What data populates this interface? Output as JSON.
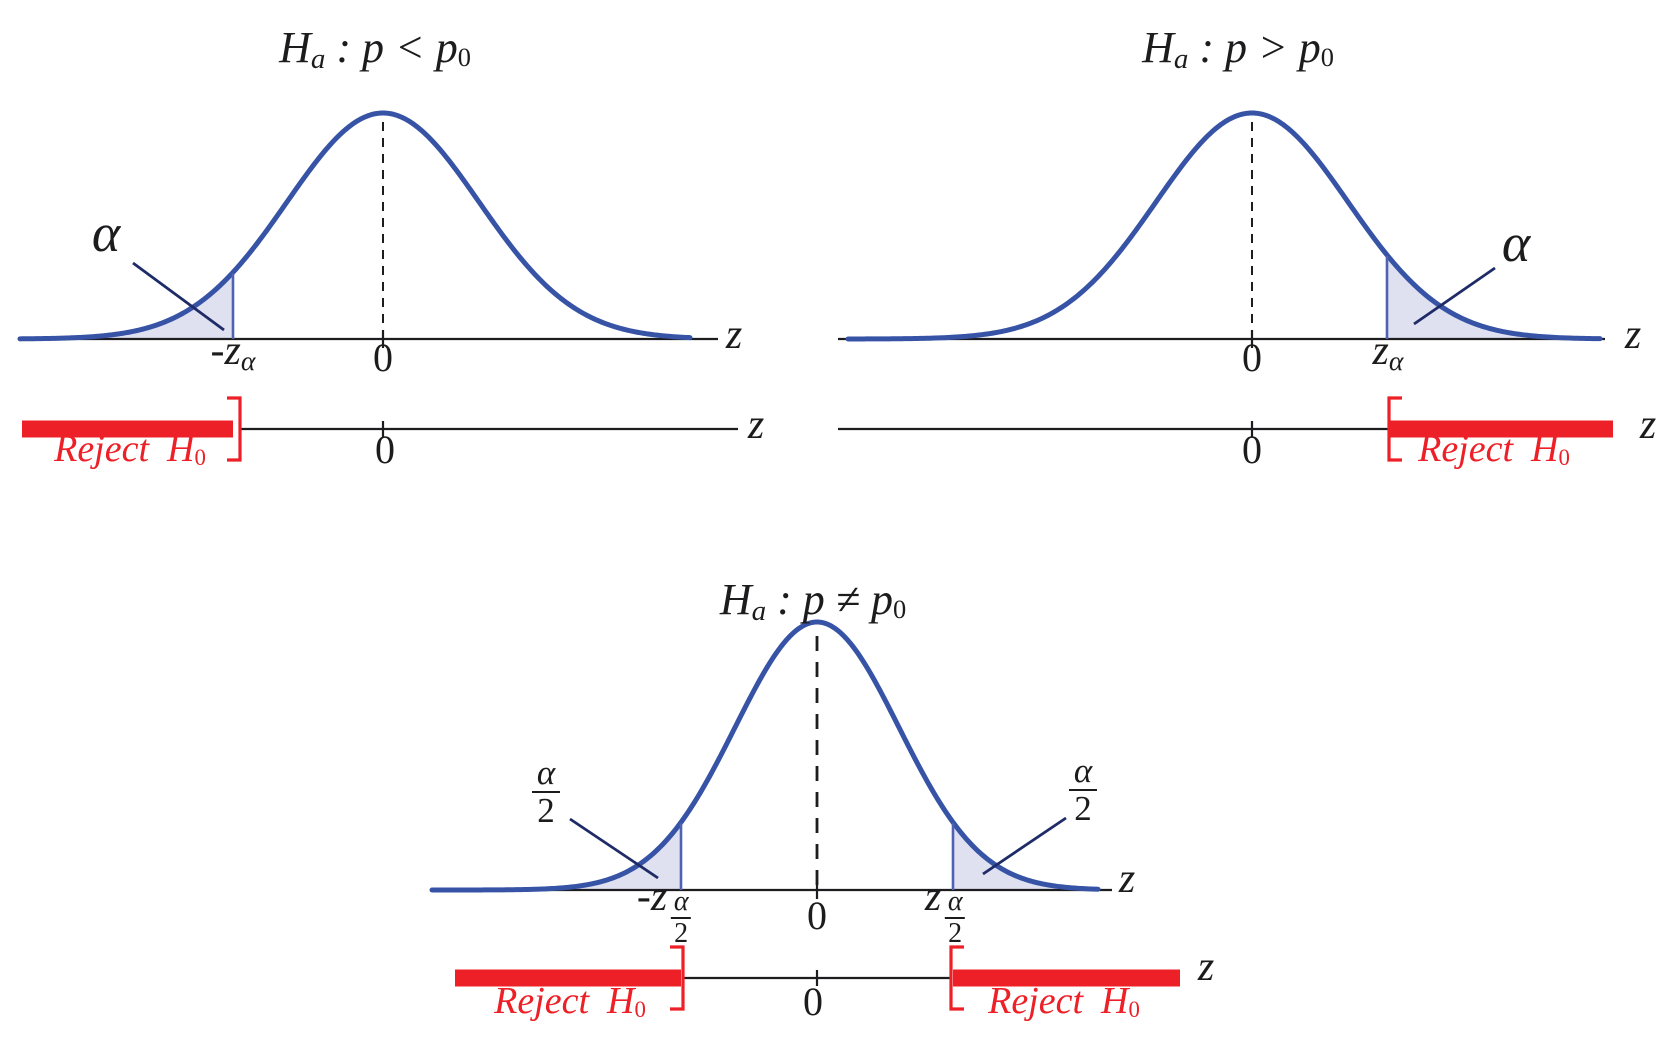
{
  "colors": {
    "curve_blue": "#3753a6",
    "crit_line_blue": "#5062b4",
    "shade_lavender": "#dfe1f1",
    "reject_red": "#ed2027",
    "pointer_navy": "#1e2b66",
    "axis_black": "#1d1d1f"
  },
  "panels": {
    "left": {
      "title": {
        "h": "H",
        "h_sub": "a",
        "rel": " : p < p",
        "p_sub": "0"
      },
      "alpha": "α",
      "crit": {
        "base": "-z",
        "sub": "α"
      },
      "zero": "0",
      "axis_z": "z",
      "reject": {
        "word": "Reject",
        "h": "H",
        "h_sub": "0"
      },
      "reject_zero": "0",
      "reject_z": "z"
    },
    "right": {
      "title": {
        "h": "H",
        "h_sub": "a",
        "rel": " : p > p",
        "p_sub": "0"
      },
      "alpha": "α",
      "crit": {
        "base": "z",
        "sub": "α"
      },
      "zero": "0",
      "axis_z": "z",
      "reject": {
        "word": "Reject",
        "h": "H",
        "h_sub": "0"
      },
      "reject_zero": "0",
      "reject_z": "z"
    },
    "two": {
      "title": {
        "h": "H",
        "h_sub": "a",
        "rel": " : p ≠ p",
        "p_sub": "0"
      },
      "alpha_left": {
        "num": "α",
        "den": "2"
      },
      "alpha_right": {
        "num": "α",
        "den": "2"
      },
      "crit_left": {
        "base": "-z",
        "num": "α",
        "den": "2"
      },
      "crit_right": {
        "base": "z",
        "num": "α",
        "den": "2"
      },
      "zero": "0",
      "axis_z": "z",
      "reject_left": {
        "word": "Reject",
        "h": "H",
        "h_sub": "0"
      },
      "reject_right": {
        "word": "Reject",
        "h": "H",
        "h_sub": "0"
      },
      "reject_zero": "0",
      "reject_z": "z"
    }
  }
}
